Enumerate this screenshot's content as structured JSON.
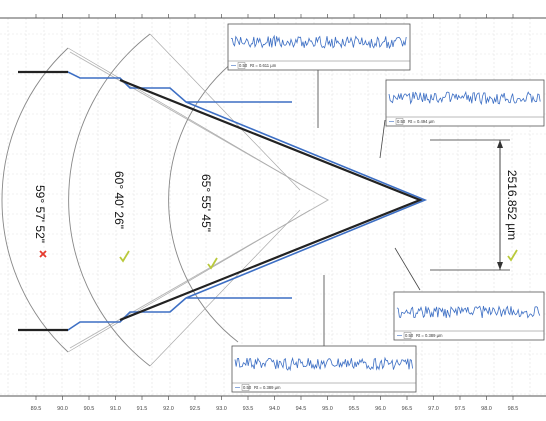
{
  "x_axis": {
    "ticks": [
      "89.5",
      "90.0",
      "90.5",
      "91.0",
      "91.5",
      "92.0",
      "92.5",
      "93.0",
      "93.5",
      "94.0",
      "94.5",
      "95.0",
      "95.5",
      "96.0",
      "96.5",
      "97.0",
      "97.5",
      "98.0",
      "98.5"
    ]
  },
  "angles": [
    {
      "label": "59° 57' 52\"",
      "status": "fail",
      "status_icon": "cross-icon",
      "status_color": "#e53a2e"
    },
    {
      "label": "60° 40' 26\"",
      "status": "pass",
      "status_icon": "check-icon",
      "status_color": "#b9c93a"
    },
    {
      "label": "65° 55' 45\"",
      "status": "pass",
      "status_icon": "check-icon",
      "status_color": "#b9c93a"
    }
  ],
  "distance": {
    "label": "2516.852 µm",
    "status": "pass",
    "status_icon": "check-icon",
    "status_color": "#b9c93a"
  },
  "roughness_boxes": [
    {
      "scale": "0.50",
      "value": "Rt = 0.611 µm"
    },
    {
      "scale": "0.50",
      "value": "Rt = 0.494 µm"
    },
    {
      "scale": "0.50",
      "value": "Rt = 0.389 µm"
    },
    {
      "scale": "0.50",
      "value": "Rt = 0.389 µm"
    }
  ],
  "colors": {
    "profile_blue": "#3d6fc4",
    "profile_dark": "#222222",
    "grid": "#dddddd",
    "guide": "#9a9a9a"
  }
}
